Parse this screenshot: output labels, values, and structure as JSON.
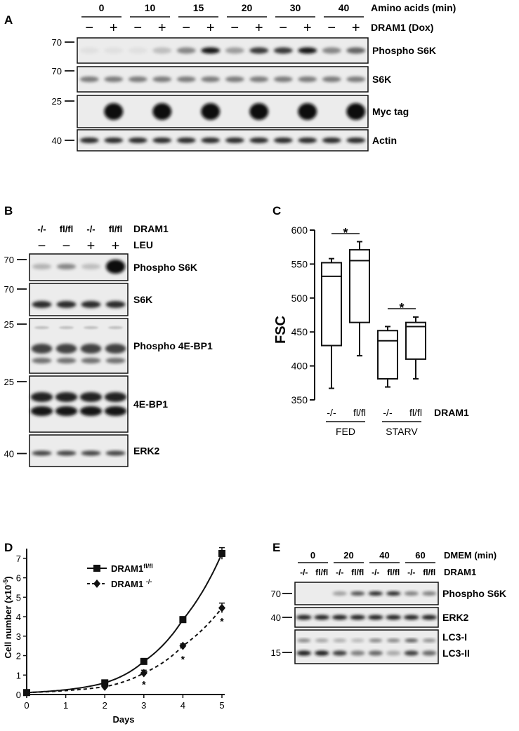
{
  "panelA": {
    "letter": "A",
    "time_header": "Amino acids (min)",
    "dox_header": "DRAM1 (Dox)",
    "times": [
      "0",
      "10",
      "15",
      "20",
      "30",
      "40"
    ],
    "minus": "−",
    "plus": "+",
    "blots": [
      {
        "marker": "70",
        "label": "Phospho S6K"
      },
      {
        "marker": "70",
        "label": "S6K"
      },
      {
        "marker": "25",
        "label": "Myc tag"
      },
      {
        "marker": "40",
        "label": "Actin"
      }
    ],
    "band_intensity": {
      "phospho_s6k": [
        0.05,
        0.05,
        0.05,
        0.2,
        0.45,
        0.95,
        0.35,
        0.8,
        0.8,
        0.95,
        0.45,
        0.6
      ],
      "s6k": [
        0.5,
        0.5,
        0.5,
        0.5,
        0.5,
        0.5,
        0.5,
        0.5,
        0.5,
        0.5,
        0.5,
        0.5
      ],
      "myc": [
        0.0,
        1.0,
        0.0,
        1.0,
        0.0,
        1.0,
        0.0,
        1.0,
        0.0,
        1.0,
        0.0,
        1.0
      ],
      "actin": [
        0.85,
        0.85,
        0.85,
        0.85,
        0.85,
        0.85,
        0.85,
        0.85,
        0.85,
        0.85,
        0.85,
        0.85
      ]
    }
  },
  "panelB": {
    "letter": "B",
    "genotypes": [
      "-/-",
      "fl/fl",
      "-/-",
      "fl/fl"
    ],
    "dram1_label": "DRAM1",
    "leu_label": "LEU",
    "leu_signs": [
      "−",
      "−",
      "+",
      "+"
    ],
    "blots": [
      {
        "marker": "70",
        "label": "Phospho S6K"
      },
      {
        "marker": "70",
        "label": "S6K"
      },
      {
        "marker": "25",
        "label": "Phospho 4E-BP1"
      },
      {
        "marker": "25",
        "label": "4E-BP1"
      },
      {
        "marker": "40",
        "label": "ERK2"
      }
    ],
    "band_intensity": {
      "phospho_s6k": [
        0.25,
        0.45,
        0.2,
        1.0
      ]
    }
  },
  "panelC": {
    "letter": "C",
    "ylabel": "FSC",
    "yticks": [
      "600",
      "550",
      "500",
      "450",
      "400",
      "350"
    ],
    "ylim": [
      350,
      600
    ],
    "genotypes": [
      "-/-",
      "fl/fl",
      "-/-",
      "fl/fl"
    ],
    "dram1_label": "DRAM1",
    "groups": [
      "FED",
      "STARV"
    ],
    "significance": "*",
    "boxes": [
      {
        "min": 367,
        "q1": 430,
        "median": 532,
        "q3": 552,
        "max": 558
      },
      {
        "min": 415,
        "q1": 464,
        "median": 555,
        "q3": 571,
        "max": 583
      },
      {
        "min": 369,
        "q1": 381,
        "median": 437,
        "q3": 452,
        "max": 458
      },
      {
        "min": 381,
        "q1": 410,
        "median": 458,
        "q3": 464,
        "max": 472
      }
    ]
  },
  "panelD": {
    "letter": "D",
    "ylabel": "Cell number (x10",
    "ylabel_sup": "-5",
    "ylabel_end": ")",
    "xlabel": "Days",
    "xticks": [
      "0",
      "1",
      "2",
      "3",
      "4",
      "5"
    ],
    "yticks": [
      "0",
      "1",
      "2",
      "3",
      "4",
      "5",
      "6",
      "7"
    ],
    "legend": [
      {
        "name": "DRAM1",
        "sup": "fl/fl"
      },
      {
        "name": "DRAM1 ",
        "sup": "-/-"
      }
    ],
    "star": "*"
  },
  "panelE": {
    "letter": "E",
    "times": [
      "0",
      "20",
      "40",
      "60"
    ],
    "time_header": "DMEM (min)",
    "dram1_label": "DRAM1",
    "genotypes": [
      "-/-",
      "fl/fl",
      "-/-",
      "fl/fl",
      "-/-",
      "fl/fl",
      "-/-",
      "fl/fl"
    ],
    "blots": [
      {
        "marker": "70",
        "label": "Phospho S6K"
      },
      {
        "marker": "40",
        "label": "ERK2"
      },
      {
        "marker": "15",
        "label": "LC3-I",
        "label2": "LC3-II"
      }
    ],
    "band_intensity": {
      "phospho_s6k": [
        0.0,
        0.0,
        0.35,
        0.7,
        0.9,
        0.9,
        0.5,
        0.5
      ],
      "lc3_i": [
        0.5,
        0.35,
        0.3,
        0.25,
        0.5,
        0.5,
        0.7,
        0.45
      ],
      "lc3_ii": [
        0.95,
        0.95,
        0.8,
        0.5,
        0.6,
        0.3,
        0.8,
        0.6
      ]
    }
  },
  "chart_data": [
    {
      "type": "box",
      "title": "",
      "ylabel": "FSC",
      "ylim": [
        350,
        600
      ],
      "categories": [
        "-/- FED",
        "fl/fl FED",
        "-/- STARV",
        "fl/fl STARV"
      ],
      "values": [
        {
          "min": 367,
          "q1": 430,
          "median": 532,
          "q3": 552,
          "max": 558
        },
        {
          "min": 415,
          "q1": 464,
          "median": 555,
          "q3": 571,
          "max": 583
        },
        {
          "min": 369,
          "q1": 381,
          "median": 437,
          "q3": 452,
          "max": 458
        },
        {
          "min": 381,
          "q1": 410,
          "median": 458,
          "q3": 464,
          "max": 472
        }
      ],
      "annotations": [
        "*",
        "*"
      ]
    },
    {
      "type": "line",
      "title": "",
      "xlabel": "Days",
      "ylabel": "Cell number (x10-5)",
      "xlim": [
        0,
        5
      ],
      "ylim": [
        0,
        7.5
      ],
      "x": [
        0,
        2,
        3,
        4,
        5
      ],
      "series": [
        {
          "name": "DRAM1 fl/fl",
          "values": [
            0.1,
            0.6,
            1.7,
            3.85,
            7.25
          ],
          "errors": [
            0.1,
            0.15,
            0.15,
            0.15,
            0.3
          ]
        },
        {
          "name": "DRAM1 -/-",
          "values": [
            0.1,
            0.4,
            1.1,
            2.5,
            4.45
          ],
          "errors": [
            0.1,
            0.1,
            0.15,
            0.1,
            0.25
          ]
        }
      ],
      "annotations": [
        "*",
        "*",
        "*"
      ]
    }
  ]
}
